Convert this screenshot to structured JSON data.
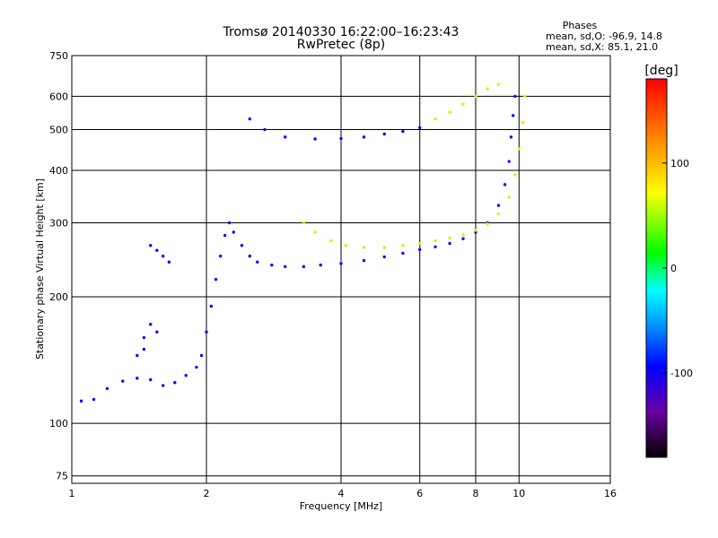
{
  "chart_data": {
    "type": "scatter",
    "title": "Tromsø 20140330 16:22:00–16:23:43",
    "subtitle": "RwPretec (8p)",
    "xlabel": "Frequency [MHz]",
    "ylabel": "Stationary phase Virtual Height [km]",
    "x_scale": "log",
    "y_scale": "log",
    "xlim": [
      1,
      16
    ],
    "ylim": [
      72,
      750
    ],
    "x_ticks": [
      "1",
      "2",
      "4",
      "6",
      "8",
      "10",
      "16"
    ],
    "y_ticks": [
      "75",
      "100",
      "200",
      "300",
      "400",
      "500",
      "600",
      "750"
    ],
    "grid": true,
    "legend": {
      "title": "Phases",
      "line1": "mean, sd,O:  -96.9, 14.8",
      "line2": "mean, sd,X:  85.1, 21.0"
    },
    "colorbar": {
      "label": "[deg]",
      "ticks": [
        "100",
        "0",
        "-100"
      ],
      "tick_values": [
        100,
        0,
        -100
      ],
      "range": [
        -180,
        180
      ]
    },
    "series": [
      {
        "name": "O",
        "phase": -96.9,
        "points": [
          [
            1.05,
            113
          ],
          [
            1.12,
            114
          ],
          [
            1.2,
            121
          ],
          [
            1.3,
            126
          ],
          [
            1.4,
            128
          ],
          [
            1.5,
            127
          ],
          [
            1.6,
            123
          ],
          [
            1.7,
            125
          ],
          [
            1.8,
            130
          ],
          [
            1.9,
            136
          ],
          [
            1.95,
            145
          ],
          [
            2.0,
            165
          ],
          [
            2.05,
            190
          ],
          [
            2.1,
            220
          ],
          [
            2.15,
            250
          ],
          [
            2.2,
            280
          ],
          [
            2.25,
            300
          ],
          [
            2.3,
            285
          ],
          [
            2.4,
            265
          ],
          [
            2.5,
            250
          ],
          [
            2.6,
            242
          ],
          [
            2.8,
            238
          ],
          [
            3.0,
            236
          ],
          [
            3.3,
            236
          ],
          [
            3.6,
            238
          ],
          [
            4.0,
            240
          ],
          [
            4.5,
            244
          ],
          [
            5.0,
            249
          ],
          [
            5.5,
            254
          ],
          [
            6.0,
            259
          ],
          [
            6.5,
            263
          ],
          [
            7.0,
            268
          ],
          [
            7.5,
            275
          ],
          [
            8.0,
            285
          ],
          [
            8.5,
            300
          ],
          [
            9.0,
            330
          ],
          [
            9.3,
            370
          ],
          [
            9.5,
            420
          ],
          [
            9.6,
            480
          ],
          [
            9.7,
            540
          ],
          [
            9.8,
            600
          ],
          [
            1.4,
            145
          ],
          [
            1.45,
            160
          ],
          [
            1.5,
            172
          ],
          [
            1.55,
            165
          ],
          [
            1.45,
            150
          ],
          [
            1.5,
            265
          ],
          [
            1.55,
            258
          ],
          [
            1.6,
            250
          ],
          [
            1.65,
            242
          ],
          [
            2.5,
            530
          ],
          [
            2.7,
            500
          ],
          [
            3.0,
            480
          ],
          [
            3.5,
            475
          ],
          [
            4.0,
            476
          ],
          [
            4.5,
            480
          ],
          [
            5.0,
            488
          ],
          [
            5.5,
            495
          ],
          [
            6.0,
            505
          ]
        ]
      },
      {
        "name": "X",
        "phase": 85.1,
        "points": [
          [
            3.3,
            300
          ],
          [
            3.5,
            285
          ],
          [
            3.8,
            272
          ],
          [
            4.1,
            265
          ],
          [
            4.5,
            262
          ],
          [
            5.0,
            262
          ],
          [
            5.5,
            265
          ],
          [
            6.0,
            268
          ],
          [
            6.5,
            272
          ],
          [
            7.0,
            276
          ],
          [
            7.5,
            281
          ],
          [
            8.0,
            288
          ],
          [
            8.5,
            298
          ],
          [
            9.0,
            315
          ],
          [
            9.5,
            345
          ],
          [
            9.8,
            390
          ],
          [
            10.0,
            450
          ],
          [
            10.2,
            520
          ],
          [
            10.3,
            600
          ],
          [
            6.5,
            530
          ],
          [
            7.0,
            550
          ],
          [
            7.5,
            575
          ],
          [
            8.0,
            600
          ],
          [
            8.5,
            625
          ],
          [
            9.0,
            640
          ]
        ]
      }
    ]
  }
}
